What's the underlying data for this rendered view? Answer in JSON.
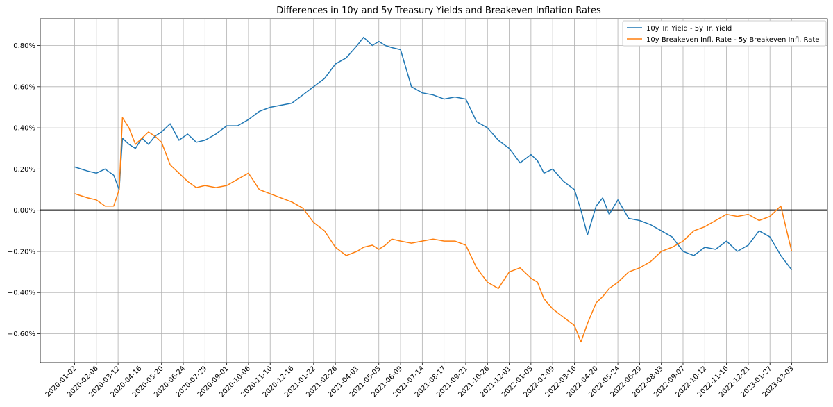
{
  "chart_data": {
    "type": "line",
    "title": "Differences in 10y and 5y Treasury Yields and Breakeven Inflation Rates",
    "xlabel": "",
    "ylabel": "",
    "x_tick_labels": [
      "2020-01-02",
      "2020-02-06",
      "2020-03-12",
      "2020-04-16",
      "2020-05-20",
      "2020-06-24",
      "2020-07-29",
      "2020-09-01",
      "2020-10-06",
      "2020-11-10",
      "2020-12-16",
      "2021-01-22",
      "2021-02-26",
      "2021-04-01",
      "2021-05-05",
      "2021-06-09",
      "2021-07-14",
      "2021-08-17",
      "2021-09-21",
      "2021-10-26",
      "2021-12-01",
      "2022-01-05",
      "2022-02-09",
      "2022-03-16",
      "2022-04-20",
      "2022-05-24",
      "2022-06-29",
      "2022-08-03",
      "2022-09-07",
      "2022-10-12",
      "2022-11-16",
      "2022-12-21",
      "2023-01-27",
      "2023-03-03"
    ],
    "y_ticks": [
      -0.6,
      -0.4,
      -0.2,
      0.0,
      0.2,
      0.4,
      0.6,
      0.8
    ],
    "y_tick_labels": [
      "−0.60%",
      "−0.40%",
      "−0.20%",
      "0.00%",
      "0.20%",
      "0.40%",
      "0.60%",
      "0.80%"
    ],
    "ylim": [
      -0.74,
      0.93
    ],
    "grid": true,
    "zero_line": true,
    "legend_position": "top-right",
    "series": [
      {
        "name": "10y Tr. Yield - 5y Tr. Yield",
        "color": "#1f77b4",
        "x": [
          0,
          0.3,
          0.6,
          1,
          1.4,
          1.8,
          2.05,
          2.2,
          2.5,
          2.8,
          3.1,
          3.4,
          3.7,
          4,
          4.4,
          4.8,
          5.2,
          5.6,
          6,
          6.5,
          7,
          7.5,
          8,
          8.5,
          9,
          9.5,
          10,
          10.5,
          11,
          11.5,
          12,
          12.5,
          13,
          13.3,
          13.7,
          14,
          14.3,
          14.6,
          15,
          15.5,
          16,
          16.5,
          17,
          17.5,
          18,
          18.5,
          19,
          19.5,
          20,
          20.5,
          21,
          21.3,
          21.6,
          22,
          22.5,
          23,
          23.3,
          23.6,
          24,
          24.3,
          24.6,
          25,
          25.5,
          26,
          26.5,
          27,
          27.5,
          28,
          28.5,
          29,
          29.5,
          30,
          30.5,
          31,
          31.5,
          32,
          32.5,
          33
        ],
        "values": [
          0.21,
          0.2,
          0.19,
          0.18,
          0.2,
          0.17,
          0.1,
          0.35,
          0.32,
          0.3,
          0.35,
          0.32,
          0.36,
          0.38,
          0.42,
          0.34,
          0.37,
          0.33,
          0.34,
          0.37,
          0.41,
          0.41,
          0.44,
          0.48,
          0.5,
          0.51,
          0.52,
          0.56,
          0.6,
          0.64,
          0.71,
          0.74,
          0.8,
          0.84,
          0.8,
          0.82,
          0.8,
          0.79,
          0.78,
          0.6,
          0.57,
          0.56,
          0.54,
          0.55,
          0.54,
          0.43,
          0.4,
          0.34,
          0.3,
          0.23,
          0.27,
          0.24,
          0.18,
          0.2,
          0.14,
          0.1,
          0.0,
          -0.12,
          0.02,
          0.06,
          -0.02,
          0.05,
          -0.04,
          -0.05,
          -0.07,
          -0.1,
          -0.13,
          -0.2,
          -0.22,
          -0.18,
          -0.19,
          -0.15,
          -0.2,
          -0.17,
          -0.1,
          -0.13,
          -0.22,
          -0.29
        ]
      },
      {
        "name": "10y Breakeven Infl. Rate - 5y Breakeven Infl. Rate",
        "color": "#ff7f0e",
        "x": [
          0,
          0.3,
          0.6,
          1,
          1.4,
          1.8,
          2.05,
          2.2,
          2.5,
          2.8,
          3.1,
          3.4,
          3.7,
          4,
          4.4,
          4.8,
          5.2,
          5.6,
          6,
          6.5,
          7,
          7.5,
          8,
          8.5,
          9,
          9.5,
          10,
          10.5,
          11,
          11.5,
          12,
          12.5,
          13,
          13.3,
          13.7,
          14,
          14.3,
          14.6,
          15,
          15.5,
          16,
          16.5,
          17,
          17.5,
          18,
          18.5,
          19,
          19.5,
          20,
          20.5,
          21,
          21.3,
          21.6,
          22,
          22.5,
          23,
          23.3,
          23.6,
          24,
          24.3,
          24.6,
          25,
          25.5,
          26,
          26.5,
          27,
          27.5,
          28,
          28.5,
          29,
          29.5,
          30,
          30.5,
          31,
          31.5,
          32,
          32.5,
          33
        ],
        "values": [
          0.08,
          0.07,
          0.06,
          0.05,
          0.02,
          0.02,
          0.1,
          0.45,
          0.4,
          0.32,
          0.35,
          0.38,
          0.36,
          0.33,
          0.22,
          0.18,
          0.14,
          0.11,
          0.12,
          0.11,
          0.12,
          0.15,
          0.18,
          0.1,
          0.08,
          0.06,
          0.04,
          0.01,
          -0.06,
          -0.1,
          -0.18,
          -0.22,
          -0.2,
          -0.18,
          -0.17,
          -0.19,
          -0.17,
          -0.14,
          -0.15,
          -0.16,
          -0.15,
          -0.14,
          -0.15,
          -0.15,
          -0.17,
          -0.28,
          -0.35,
          -0.38,
          -0.3,
          -0.28,
          -0.33,
          -0.35,
          -0.43,
          -0.48,
          -0.52,
          -0.56,
          -0.64,
          -0.55,
          -0.45,
          -0.42,
          -0.38,
          -0.35,
          -0.3,
          -0.28,
          -0.25,
          -0.2,
          -0.18,
          -0.15,
          -0.1,
          -0.08,
          -0.05,
          -0.02,
          -0.03,
          -0.02,
          -0.05,
          -0.03,
          0.02,
          -0.2
        ]
      }
    ]
  }
}
